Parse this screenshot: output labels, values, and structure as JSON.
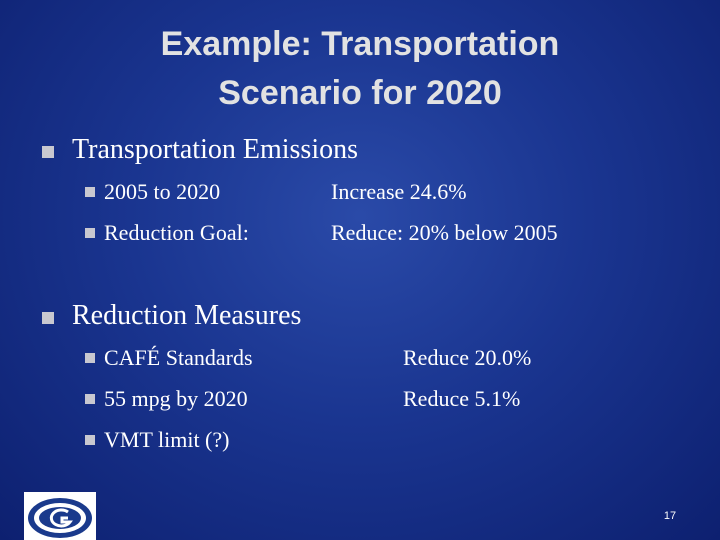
{
  "title": {
    "lines": [
      "Example: Transportation",
      "Scenario for 2020"
    ]
  },
  "sections": [
    {
      "heading": "Transportation Emissions",
      "items": [
        {
          "label": "2005 to 2020",
          "value": "Increase 24.6%"
        },
        {
          "label": "Reduction Goal:",
          "value": "Reduce: 20% below 2005"
        }
      ]
    },
    {
      "heading": "Reduction Measures",
      "items": [
        {
          "label": "CAFÉ Standards",
          "value": "Reduce 20.0%"
        },
        {
          "label": "55 mpg by 2020",
          "value": "Reduce 5.1%"
        },
        {
          "label": "VMT limit (?)",
          "value": null
        }
      ]
    }
  ],
  "slide_number": "17"
}
